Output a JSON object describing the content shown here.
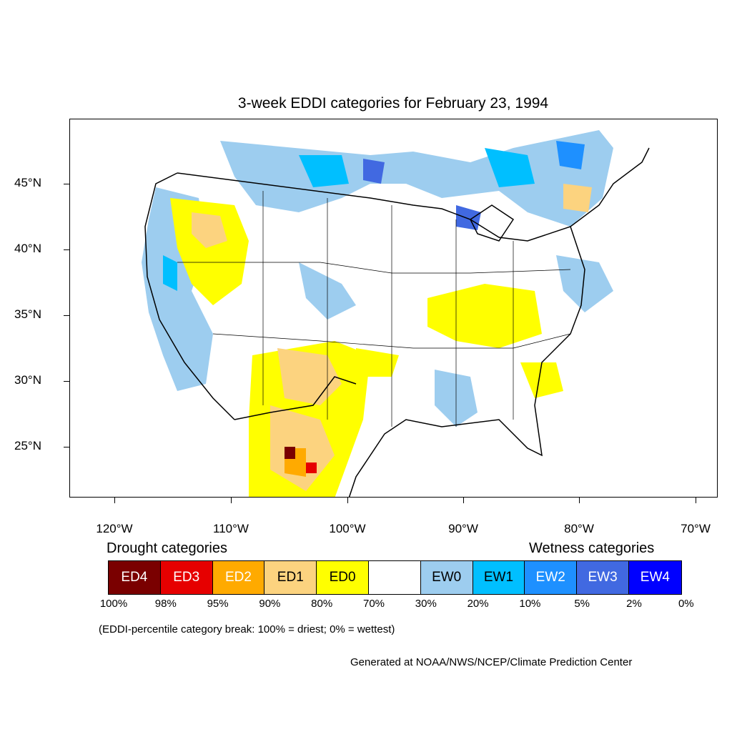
{
  "title": "3-week EDDI categories for February 23, 1994",
  "map": {
    "projection": "equidistant-cylindrical",
    "region": "Contiguous United States",
    "lat_labels": [
      "45°N",
      "40°N",
      "35°N",
      "30°N",
      "25°N"
    ],
    "lon_labels": [
      "120°W",
      "110°W",
      "100°W",
      "90°W",
      "80°W",
      "70°W"
    ]
  },
  "legend": {
    "drought_heading": "Drought categories",
    "wetness_heading": "Wetness categories",
    "categories": [
      {
        "label": "ED4",
        "color": "#7a0000",
        "text_color": "#ffffff"
      },
      {
        "label": "ED3",
        "color": "#e60000",
        "text_color": "#ffffff"
      },
      {
        "label": "ED2",
        "color": "#ffaa00",
        "text_color": "#ffffff"
      },
      {
        "label": "ED1",
        "color": "#fcd37f",
        "text_color": "#000000"
      },
      {
        "label": "ED0",
        "color": "#ffff00",
        "text_color": "#000000"
      },
      {
        "label": "",
        "color": "#ffffff",
        "text_color": "#000000"
      },
      {
        "label": "EW0",
        "color": "#9dcdef",
        "text_color": "#000000"
      },
      {
        "label": "EW1",
        "color": "#00bfff",
        "text_color": "#000000"
      },
      {
        "label": "EW2",
        "color": "#1e90ff",
        "text_color": "#ffffff"
      },
      {
        "label": "EW3",
        "color": "#4169e1",
        "text_color": "#ffffff"
      },
      {
        "label": "EW4",
        "color": "#0000ff",
        "text_color": "#ffffff"
      }
    ],
    "breaks": [
      "100%",
      "98%",
      "95%",
      "90%",
      "80%",
      "70%",
      "30%",
      "20%",
      "10%",
      "5%",
      "2%",
      "0%"
    ],
    "note": "(EDDI-percentile category break: 100% = driest; 0% = wettest)"
  },
  "credit": "Generated at NOAA/NWS/NCEP/Climate Prediction Center"
}
